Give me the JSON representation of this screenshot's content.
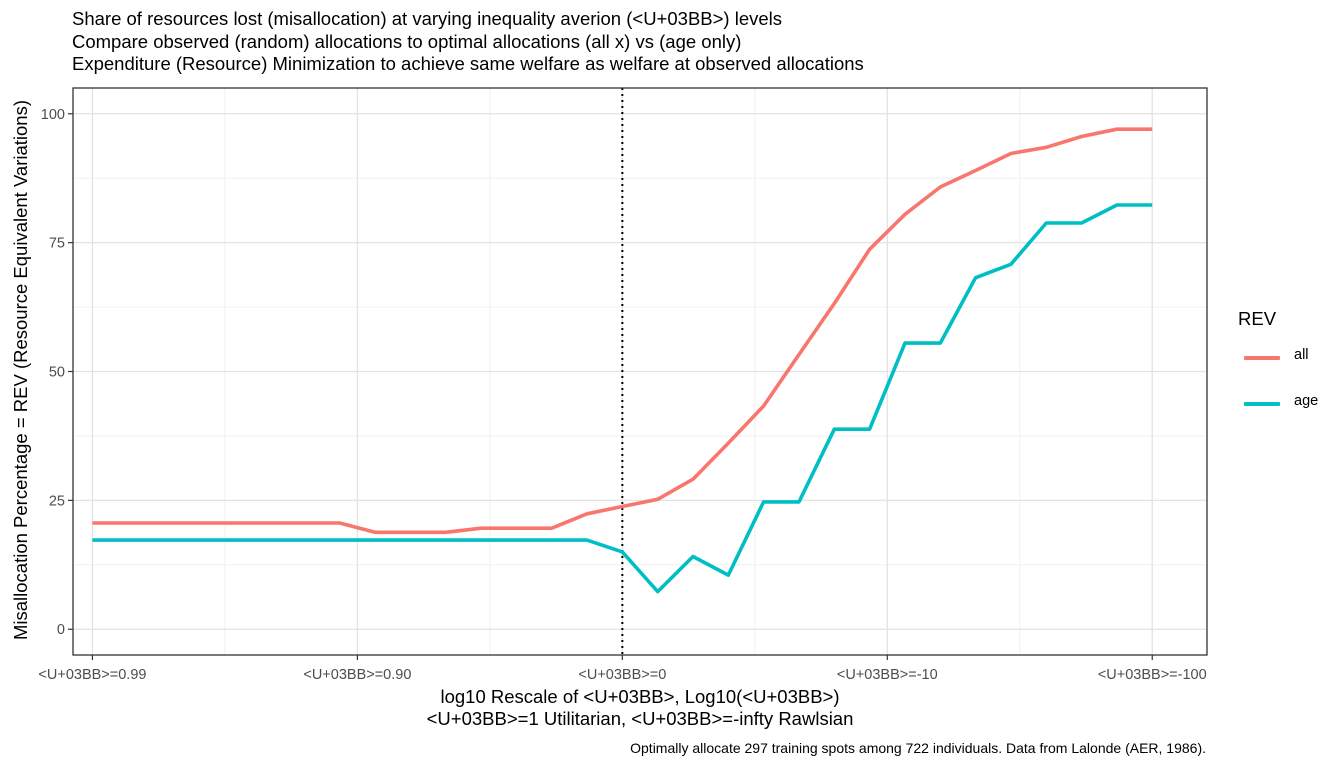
{
  "title_lines": [
    "Share of resources lost (misallocation) at varying inequality averion (<U+03BB>) levels",
    "Compare observed (random) allocations to optimal allocations (all x) vs (age only)",
    "Expenditure (Resource) Minimization to achieve same welfare as welfare at observed allocations"
  ],
  "xlabel_lines": [
    "log10 Rescale of <U+03BB>, Log10(<U+03BB>)",
    "<U+03BB>=1 Utilitarian, <U+03BB>=-infty Rawlsian"
  ],
  "ylabel": "Misallocation Percentage = REV (Resource Equivalent Variations)",
  "caption": "Optimally allocate 297 training spots among 722 individuals. Data from Lalonde (AER, 1986).",
  "legend": {
    "title": "REV",
    "position": "right",
    "entries": [
      {
        "label": "all",
        "color": "#F8766D"
      },
      {
        "label": "age",
        "color": "#00BFC4"
      }
    ]
  },
  "chart_data": {
    "type": "line",
    "grid": true,
    "xlim": [
      -0.55,
      31.55
    ],
    "ylim": [
      -5,
      105
    ],
    "x_ticks": [
      {
        "at": 0,
        "label": "<U+03BB>=0.99"
      },
      {
        "at": 7.5,
        "label": "<U+03BB>=0.90"
      },
      {
        "at": 15,
        "label": "<U+03BB>=0"
      },
      {
        "at": 22.5,
        "label": "<U+03BB>=-10"
      },
      {
        "at": 30,
        "label": "<U+03BB>=-100"
      }
    ],
    "y_ticks": [
      0,
      25,
      50,
      75,
      100
    ],
    "vline": {
      "x": 15,
      "style": "dotted"
    },
    "series": [
      {
        "name": "all",
        "color": "#F8766D",
        "x": [
          0,
          1,
          2,
          3,
          4,
          5,
          6,
          7,
          8,
          9,
          10,
          11,
          12,
          13,
          14,
          15,
          16,
          17,
          18,
          19,
          20,
          21,
          22,
          23,
          24,
          25,
          26,
          27,
          28,
          29,
          30
        ],
        "y": [
          20.6,
          20.6,
          20.6,
          20.6,
          20.6,
          20.6,
          20.6,
          20.6,
          18.8,
          18.8,
          18.8,
          19.6,
          19.6,
          19.6,
          22.4,
          23.8,
          25.2,
          29.1,
          36.1,
          43.3,
          53.3,
          63.2,
          73.7,
          80.5,
          85.8,
          89.0,
          92.3,
          93.5,
          95.6,
          97.0,
          97.0
        ]
      },
      {
        "name": "age",
        "color": "#00BFC4",
        "x": [
          0,
          1,
          2,
          3,
          4,
          5,
          6,
          7,
          8,
          9,
          10,
          11,
          12,
          13,
          14,
          15,
          16,
          17,
          18,
          19,
          20,
          21,
          22,
          23,
          24,
          25,
          26,
          27,
          28,
          29,
          30
        ],
        "y": [
          17.3,
          17.3,
          17.3,
          17.3,
          17.3,
          17.3,
          17.3,
          17.3,
          17.3,
          17.3,
          17.3,
          17.3,
          17.3,
          17.3,
          17.3,
          15.0,
          7.3,
          14.1,
          10.5,
          24.7,
          24.7,
          38.8,
          38.8,
          55.5,
          55.5,
          68.2,
          70.8,
          78.8,
          78.8,
          82.3,
          82.3
        ]
      }
    ]
  }
}
